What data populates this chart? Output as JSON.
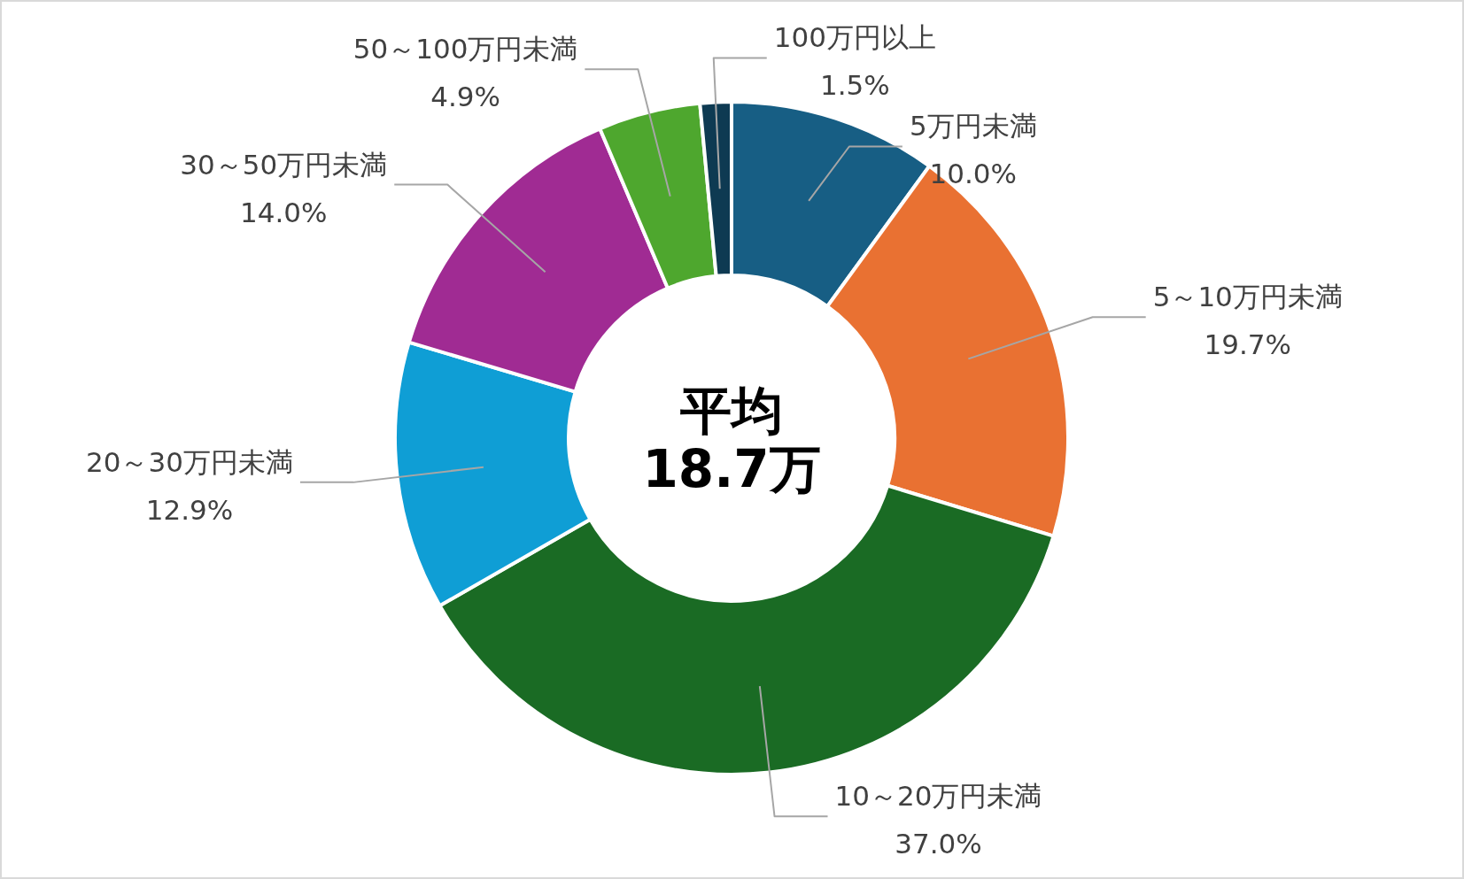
{
  "chart_data": {
    "type": "donut",
    "categories": [
      "5万円未満",
      "5～10万円未満",
      "10～20万円未満",
      "20～30万円未満",
      "30～50万円未満",
      "50～100万円未満",
      "100万円以上"
    ],
    "values": [
      10.0,
      19.7,
      37.0,
      12.9,
      14.0,
      4.9,
      1.5
    ],
    "value_labels": [
      "10.0%",
      "19.7%",
      "37.0%",
      "12.9%",
      "14.0%",
      "4.9%",
      "1.5%"
    ],
    "colors": [
      "#175e84",
      "#e97132",
      "#1a6b24",
      "#0f9ed5",
      "#a02b93",
      "#4ea72e",
      "#0e3a52"
    ],
    "annotations": [
      "平均",
      "18.7万"
    ]
  }
}
